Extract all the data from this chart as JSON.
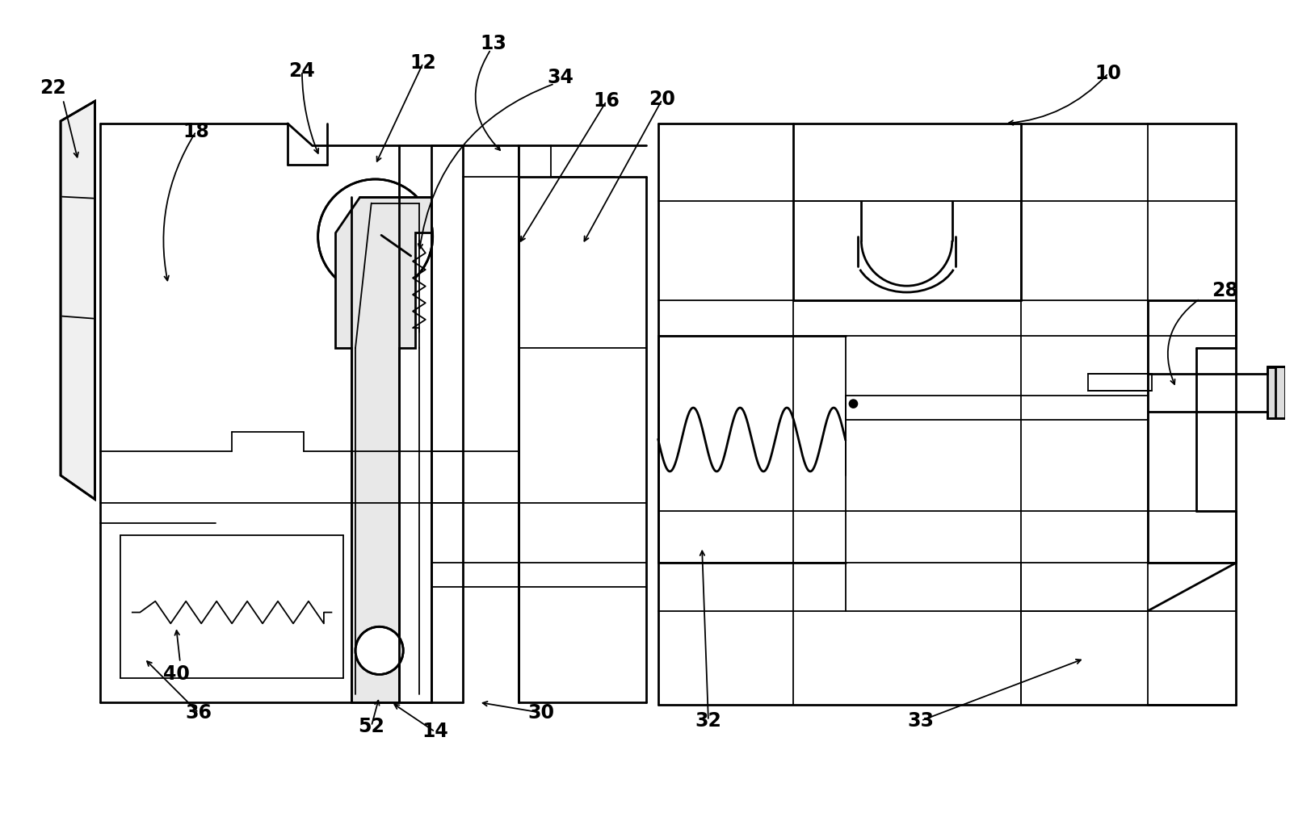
{
  "background_color": "#ffffff",
  "line_color": "#000000",
  "figsize": [
    16.02,
    10.17
  ],
  "dpi": 100,
  "lw_main": 2.0,
  "lw_thin": 1.3,
  "label_fontsize": 17
}
